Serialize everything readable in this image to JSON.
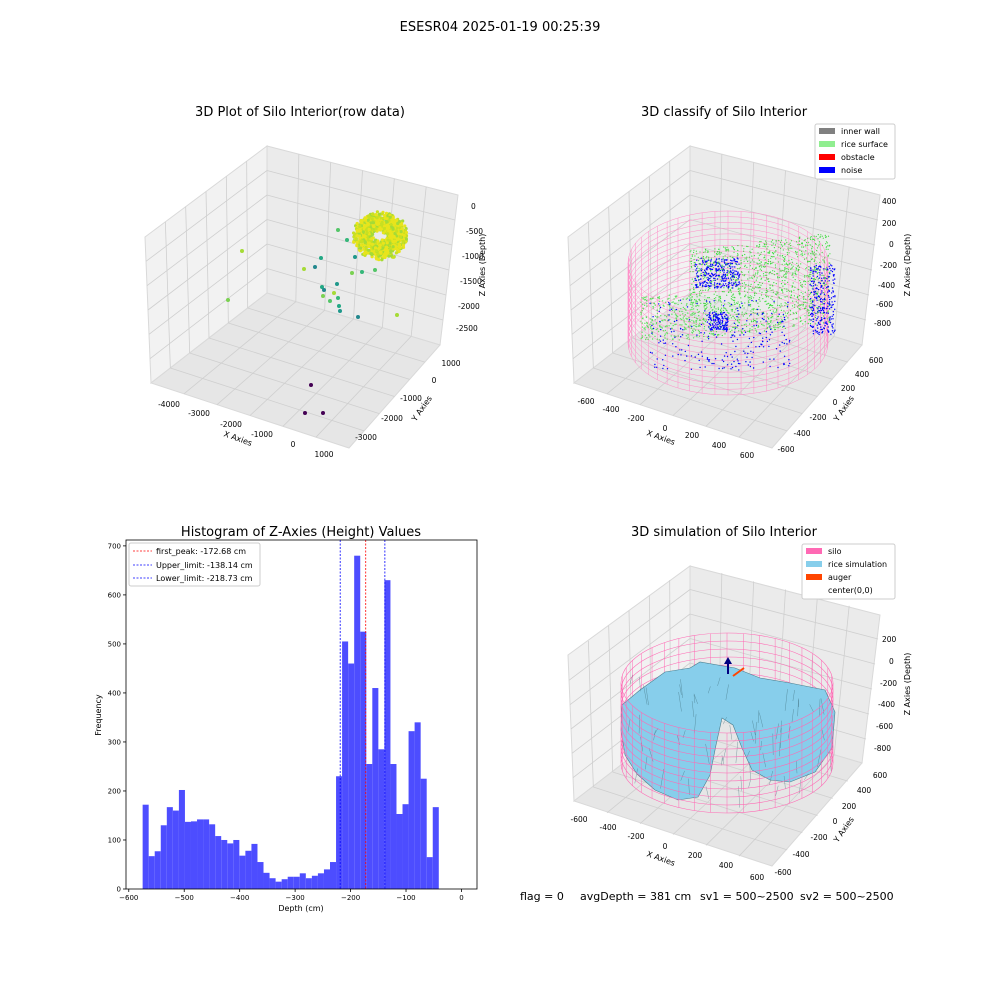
{
  "figure": {
    "suptitle": "ESESR04 2025-01-19 00:25:39",
    "status_line": {
      "flag": "flag = 0",
      "avg_depth": "avgDepth = 381 cm",
      "sv1": "sv1 = 500~2500",
      "sv2": "sv2 = 500~2500"
    }
  },
  "colors": {
    "hist_bar": "#4d4dff",
    "first_peak": "#ff0000",
    "limit_lines": "#0000ff",
    "inner_wall": "#808080",
    "rice_surface": "#90ee90",
    "obstacle": "#ff0000",
    "noise": "#0000ff",
    "silo": "#ff69b4",
    "rice_simulation": "#87ceeb",
    "auger": "#ff4500"
  },
  "chart_data": [
    {
      "type": "scatter",
      "title": "3D Plot of Silo Interior(row data)",
      "xlabel": "X Axies",
      "ylabel": "Y Axies",
      "zlabel": "Z Axies (Depth)",
      "x_ticks": [
        "-4000",
        "-3000",
        "-2000",
        "-1000",
        "0",
        "1000"
      ],
      "y_ticks": [
        "1000",
        "0",
        "-1000",
        "-2000",
        "-3000"
      ],
      "z_ticks": [
        "0",
        "-500",
        "-1000",
        "-1500",
        "-2000",
        "-2500"
      ]
    },
    {
      "type": "scatter",
      "title": "3D classify of Silo Interior",
      "xlabel": "X Axies",
      "ylabel": "Y Axies",
      "zlabel": "Z Axies (Depth)",
      "x_ticks": [
        "-600",
        "-400",
        "-200",
        "0",
        "200",
        "400",
        "600"
      ],
      "y_ticks": [
        "600",
        "400",
        "200",
        "0",
        "-200",
        "-400",
        "-600"
      ],
      "z_ticks": [
        "400",
        "200",
        "0",
        "-200",
        "-400",
        "-600",
        "-800"
      ],
      "legend": [
        {
          "label": "inner wall",
          "color": "#808080"
        },
        {
          "label": "rice surface",
          "color": "#90ee90"
        },
        {
          "label": "obstacle",
          "color": "#ff0000"
        },
        {
          "label": "noise",
          "color": "#0000ff"
        }
      ],
      "legend_loc": "upper right"
    },
    {
      "type": "bar",
      "title": "Histogram of Z-Axies (Height) Values",
      "xlabel": "Depth (cm)",
      "ylabel": "Frequency",
      "xlim": [
        -605,
        28
      ],
      "ylim": [
        0,
        712
      ],
      "x_ticks": [
        -600,
        -500,
        -400,
        -300,
        -200,
        -100,
        0
      ],
      "y_ticks": [
        0,
        100,
        200,
        300,
        400,
        500,
        600,
        700
      ],
      "bin_start": -575,
      "bin_width": 10.9,
      "values": [
        172,
        67,
        77,
        130,
        167,
        160,
        202,
        137,
        138,
        142,
        142,
        132,
        108,
        100,
        93,
        100,
        68,
        78,
        92,
        55,
        33,
        22,
        15,
        20,
        25,
        25,
        32,
        22,
        27,
        32,
        40,
        55,
        230,
        505,
        460,
        680,
        525,
        255,
        410,
        285,
        630,
        255,
        153,
        173,
        322,
        340,
        225,
        65,
        167
      ],
      "vlines": [
        {
          "label": "first_peak: -172.68 cm",
          "x": -172.68,
          "color": "#ff0000"
        },
        {
          "label": "Upper_limit: -138.14 cm",
          "x": -138.14,
          "color": "#0000ff"
        },
        {
          "label": "Lower_limit: -218.73 cm",
          "x": -218.73,
          "color": "#0000ff"
        }
      ],
      "legend_loc": "upper left"
    },
    {
      "type": "surface",
      "title": "3D simulation of Silo Interior",
      "xlabel": "X Axies",
      "ylabel": "Y Axies",
      "zlabel": "Z Axies (Depth)",
      "x_ticks": [
        "-600",
        "-400",
        "-200",
        "0",
        "200",
        "400",
        "600"
      ],
      "y_ticks": [
        "600",
        "400",
        "200",
        "0",
        "-200",
        "-400",
        "-600"
      ],
      "z_ticks": [
        "200",
        "0",
        "-200",
        "-400",
        "-600",
        "-800"
      ],
      "legend": [
        {
          "label": "silo",
          "color": "#ff69b4"
        },
        {
          "label": "rice simulation",
          "color": "#87ceeb"
        },
        {
          "label": "auger",
          "color": "#ff4500"
        },
        {
          "label": "center(0,0)",
          "color": ""
        }
      ],
      "legend_loc": "upper right"
    }
  ]
}
